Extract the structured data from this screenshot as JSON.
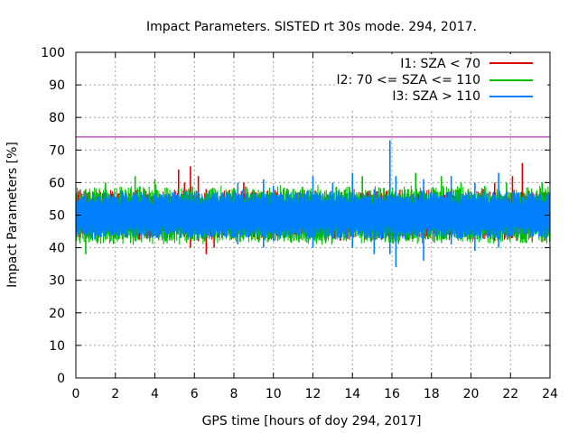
{
  "chart_data": {
    "type": "line",
    "title": "Impact Parameters. SISTED rt 30s mode. 294, 2017.",
    "xlabel": "GPS time [hours of doy 294, 2017]",
    "ylabel": "Impact Parameters [%]",
    "xlim": [
      0,
      24
    ],
    "ylim": [
      0,
      100
    ],
    "x_ticks": [
      0,
      2,
      4,
      6,
      8,
      10,
      12,
      14,
      16,
      18,
      20,
      22,
      24
    ],
    "y_ticks": [
      0,
      10,
      20,
      30,
      40,
      50,
      60,
      70,
      80,
      90,
      100
    ],
    "grid": true,
    "legend_position": "top-right",
    "reference_line": {
      "y": 74,
      "color": "#a000a0"
    },
    "series": [
      {
        "name": "I1: SZA < 70",
        "color": "#e00000",
        "points": [
          [
            5.2,
            48,
            64
          ],
          [
            5.5,
            44,
            60
          ],
          [
            5.8,
            40,
            65
          ],
          [
            6.2,
            42,
            62
          ],
          [
            6.6,
            38,
            58
          ],
          [
            7.0,
            40,
            56
          ],
          [
            7.4,
            43,
            55
          ],
          [
            8.5,
            44,
            60
          ],
          [
            20.6,
            43,
            58
          ],
          [
            21.2,
            42,
            60
          ],
          [
            22.1,
            43,
            62
          ],
          [
            22.6,
            44,
            66
          ],
          [
            23.1,
            42,
            57
          ]
        ]
      },
      {
        "name": "I2: 70 <= SZA <= 110",
        "color": "#00c000",
        "points": [
          [
            0.5,
            38,
            58
          ],
          [
            1.5,
            44,
            60
          ],
          [
            3.0,
            42,
            62
          ],
          [
            4.0,
            44,
            61
          ],
          [
            10.5,
            43,
            58
          ],
          [
            11.5,
            44,
            58
          ],
          [
            14.5,
            44,
            62
          ],
          [
            17.2,
            43,
            63
          ],
          [
            18.5,
            42,
            62
          ],
          [
            19.5,
            44,
            60
          ],
          [
            21.8,
            44,
            60
          ],
          [
            23.6,
            43,
            60
          ]
        ]
      },
      {
        "name": "I3: SZA > 110",
        "color": "#0080ff",
        "points": [
          [
            8.2,
            41,
            60
          ],
          [
            9.5,
            40,
            61
          ],
          [
            10.0,
            42,
            59
          ],
          [
            12.0,
            40,
            62
          ],
          [
            13.0,
            43,
            60
          ],
          [
            14.0,
            40,
            63
          ],
          [
            15.1,
            38,
            58
          ],
          [
            15.9,
            38,
            73
          ],
          [
            16.2,
            34,
            62
          ],
          [
            17.6,
            36,
            61
          ],
          [
            19.0,
            41,
            62
          ],
          [
            20.2,
            39,
            60
          ],
          [
            21.4,
            40,
            63
          ]
        ]
      }
    ]
  }
}
